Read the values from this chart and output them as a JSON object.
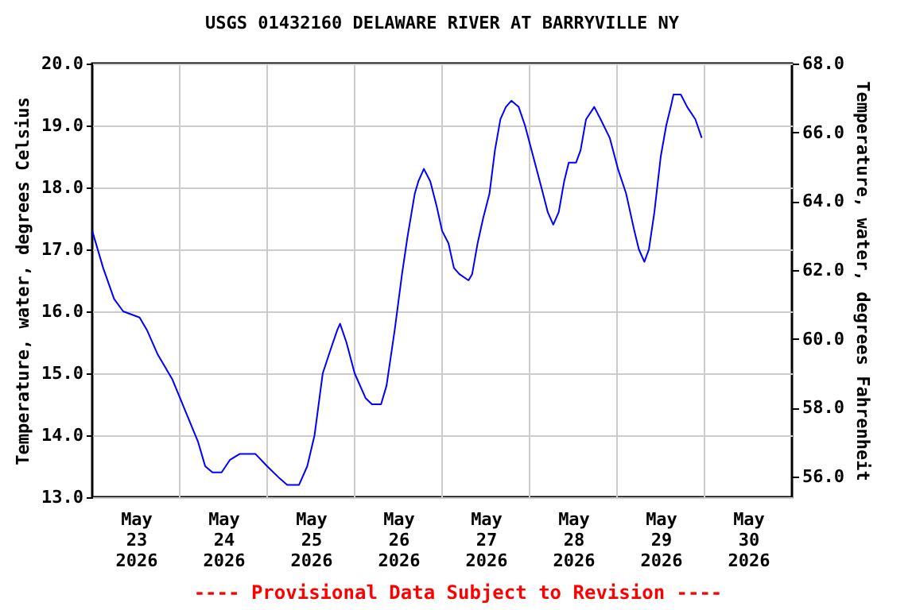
{
  "chart_data": {
    "type": "line",
    "title": "USGS 01432160 DELAWARE RIVER AT BARRYVILLE NY",
    "ylabel": "Temperature, water, degrees Celsius",
    "y2label": "Temperature, water, degrees Fahrenheit",
    "annotations": [
      "---- Provisional Data Subject to Revision ----"
    ],
    "xlim": [
      "2026-05-23T00:00",
      "2026-05-31T00:00"
    ],
    "xticks": [
      {
        "value": "2026-05-23T12:00",
        "label": "May 23 2026"
      },
      {
        "value": "2026-05-24T12:00",
        "label": "May 24 2026"
      },
      {
        "value": "2026-05-25T12:00",
        "label": "May 25 2026"
      },
      {
        "value": "2026-05-26T12:00",
        "label": "May 26 2026"
      },
      {
        "value": "2026-05-27T12:00",
        "label": "May 27 2026"
      },
      {
        "value": "2026-05-28T12:00",
        "label": "May 28 2026"
      },
      {
        "value": "2026-05-29T12:00",
        "label": "May 29 2026"
      },
      {
        "value": "2026-05-30T12:00",
        "label": "May 30 2026"
      },
      {
        "value": "2026-05-24T00:00",
        "label": null
      },
      {
        "value": "2026-05-25T00:00",
        "label": null
      },
      {
        "value": "2026-05-26T00:00",
        "label": null
      },
      {
        "value": "2026-05-27T00:00",
        "label": null
      },
      {
        "value": "2026-05-28T00:00",
        "label": null
      },
      {
        "value": "2026-05-29T00:00",
        "label": null
      },
      {
        "value": "2026-05-30T00:00",
        "label": null
      }
    ],
    "ylim": [
      13,
      20
    ],
    "yticks": [
      {
        "value": 13,
        "label": "13.0"
      },
      {
        "value": 14,
        "label": "14.0"
      },
      {
        "value": 15,
        "label": "15.0"
      },
      {
        "value": 16,
        "label": "16.0"
      },
      {
        "value": 17,
        "label": "17.0"
      },
      {
        "value": 18,
        "label": "18.0"
      },
      {
        "value": 19,
        "label": "19.0"
      },
      {
        "value": 20,
        "label": "20.0"
      }
    ],
    "y2lim": [
      55.4,
      68
    ],
    "y2ticks": [
      {
        "value": 56,
        "label": "56.0"
      },
      {
        "value": 58,
        "label": "58.0"
      },
      {
        "value": 60,
        "label": "60.0"
      },
      {
        "value": 62,
        "label": "62.0"
      },
      {
        "value": 64,
        "label": "64.0"
      },
      {
        "value": 66,
        "label": "66.0"
      },
      {
        "value": 68,
        "label": "68.0"
      }
    ],
    "grid": true,
    "series": [
      {
        "color": "#0000ff",
        "x": [
          "2026-05-23T00:00",
          "2026-05-23T03:00",
          "2026-05-23T06:00",
          "2026-05-23T08:30",
          "2026-05-23T13:00",
          "2026-05-23T15:00",
          "2026-05-23T18:00",
          "2026-05-23T22:00",
          "2026-05-24T01:30",
          "2026-05-24T05:00",
          "2026-05-24T07:00",
          "2026-05-24T09:00",
          "2026-05-24T11:30",
          "2026-05-24T13:45",
          "2026-05-24T16:30",
          "2026-05-24T20:45",
          "2026-05-25T00:00",
          "2026-05-25T03:30",
          "2026-05-25T05:30",
          "2026-05-25T08:45",
          "2026-05-25T11:00",
          "2026-05-25T13:00",
          "2026-05-25T15:15",
          "2026-05-25T17:30",
          "2026-05-25T19:15",
          "2026-05-25T20:00",
          "2026-05-25T21:45",
          "2026-05-26T00:00",
          "2026-05-26T03:00",
          "2026-05-26T04:45",
          "2026-05-26T07:15",
          "2026-05-26T08:45",
          "2026-05-26T11:00",
          "2026-05-26T13:00",
          "2026-05-26T14:30",
          "2026-05-26T16:30",
          "2026-05-26T17:30",
          "2026-05-26T19:00",
          "2026-05-26T20:45",
          "2026-05-26T22:30",
          "2026-05-27T00:00",
          "2026-05-27T01:45",
          "2026-05-27T03:15",
          "2026-05-27T04:45",
          "2026-05-27T07:15",
          "2026-05-27T08:15",
          "2026-05-27T09:45",
          "2026-05-27T11:15",
          "2026-05-27T13:00",
          "2026-05-27T14:30",
          "2026-05-27T16:00",
          "2026-05-27T17:30",
          "2026-05-27T19:00",
          "2026-05-27T21:00",
          "2026-05-27T22:45",
          "2026-05-28T01:00",
          "2026-05-28T03:15",
          "2026-05-28T05:00",
          "2026-05-28T06:30",
          "2026-05-28T08:00",
          "2026-05-28T09:30",
          "2026-05-28T10:45",
          "2026-05-28T12:45",
          "2026-05-28T14:00",
          "2026-05-28T15:30",
          "2026-05-28T17:45",
          "2026-05-28T19:30",
          "2026-05-28T22:00",
          "2026-05-29T00:15",
          "2026-05-29T02:30",
          "2026-05-29T04:45",
          "2026-05-29T06:00",
          "2026-05-29T07:30",
          "2026-05-29T08:45",
          "2026-05-29T10:15",
          "2026-05-29T12:00",
          "2026-05-29T13:30",
          "2026-05-29T14:45",
          "2026-05-29T15:30",
          "2026-05-29T17:30",
          "2026-05-29T19:15",
          "2026-05-29T21:30",
          "2026-05-29T23:15"
        ],
        "values": [
          17.3,
          16.7,
          16.2,
          16.0,
          15.9,
          15.7,
          15.3,
          14.9,
          14.4,
          13.9,
          13.5,
          13.4,
          13.4,
          13.6,
          13.7,
          13.7,
          13.5,
          13.3,
          13.2,
          13.2,
          13.5,
          14.0,
          15.0,
          15.4,
          15.7,
          15.8,
          15.5,
          15.0,
          14.6,
          14.5,
          14.5,
          14.8,
          15.7,
          16.6,
          17.2,
          17.9,
          18.1,
          18.3,
          18.1,
          17.7,
          17.3,
          17.1,
          16.7,
          16.6,
          16.5,
          16.6,
          17.1,
          17.5,
          17.9,
          18.6,
          19.1,
          19.3,
          19.4,
          19.3,
          19.0,
          18.5,
          18.0,
          17.6,
          17.4,
          17.6,
          18.1,
          18.4,
          18.4,
          18.6,
          19.1,
          19.3,
          19.1,
          18.8,
          18.3,
          17.9,
          17.3,
          17.0,
          16.8,
          17.0,
          17.6,
          18.5,
          19.0,
          19.3,
          19.5,
          19.5,
          19.3,
          19.1,
          18.8
        ]
      }
    ]
  }
}
